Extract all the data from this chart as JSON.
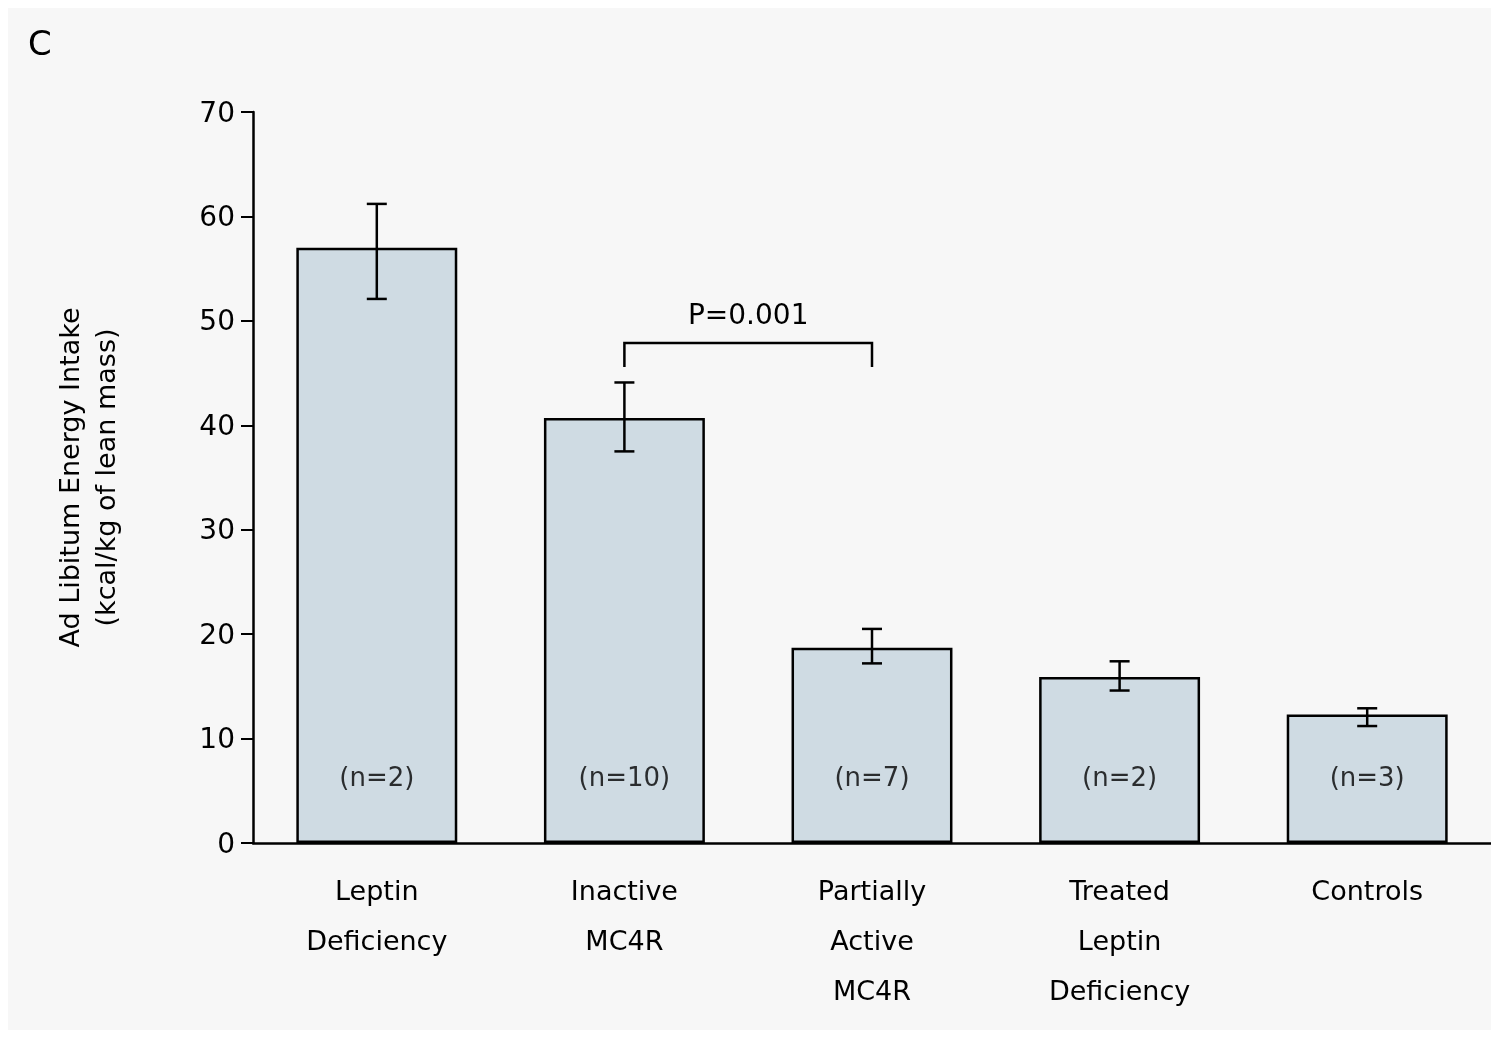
{
  "chart_data": {
    "type": "bar",
    "ylabel": "Ad Libitum Energy Intake\n(kcal/kg of lean mass)",
    "categories": [
      "Leptin\nDeficiency",
      "Inactive\nMC4R",
      "Partially\nActive\nMC4R",
      "Treated\nLeptin\nDeficiency",
      "Controls"
    ],
    "values": [
      57,
      40.7,
      18.7,
      15.9,
      12.3
    ],
    "errors": [
      [
        52.1,
        61.2
      ],
      [
        37.5,
        44.1
      ],
      [
        17.2,
        20.5
      ],
      [
        14.6,
        17.4
      ],
      [
        11.2,
        12.9
      ]
    ],
    "color": "#cfdbe3",
    "ylim": [
      0,
      70
    ],
    "yticks": [
      0,
      10,
      20,
      30,
      40,
      50,
      60,
      70
    ],
    "grid": false,
    "annotations": [
      "C",
      "P=0.001",
      "(n=2)",
      "(n=10)",
      "(n=7)",
      "(n=2)",
      "(n=3)"
    ]
  }
}
